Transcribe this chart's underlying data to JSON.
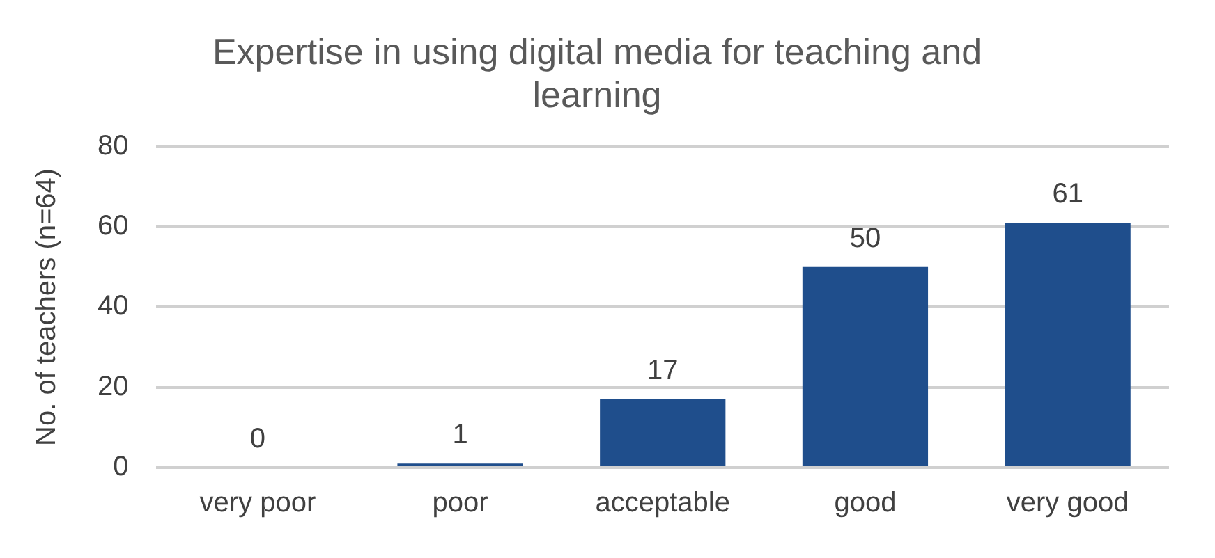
{
  "chart_data": {
    "type": "bar",
    "title": "Expertise in using digital media for teaching and learning",
    "ylabel": "No. of teachers (n=64)",
    "categories": [
      "very poor",
      "poor",
      "acceptable",
      "good",
      "very good"
    ],
    "values": [
      0,
      1,
      17,
      50,
      61
    ],
    "color": "#1f4e8c",
    "ylim": [
      0,
      80
    ],
    "yticks": [
      0,
      20,
      40,
      60,
      80
    ],
    "grid": "y",
    "data_labels": true
  }
}
